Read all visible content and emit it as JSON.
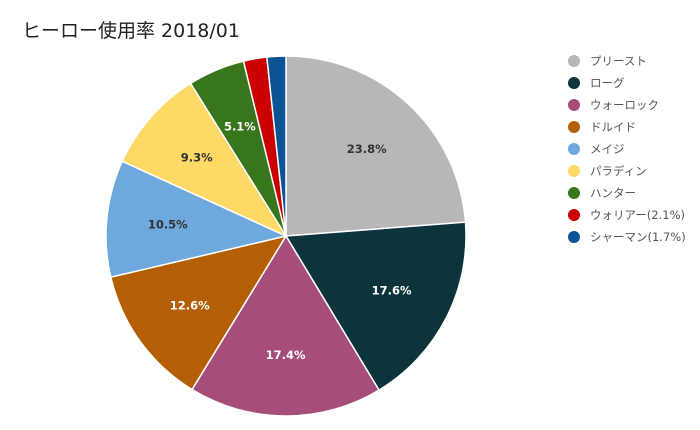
{
  "chart_data": {
    "type": "pie",
    "title": "ヒーロー使用率 2018/01",
    "legend_position": "right",
    "slices": [
      {
        "name": "プリースト",
        "value": 23.8,
        "label": "23.8%",
        "color": "#b7b7b7",
        "label_color": "#333333"
      },
      {
        "name": "ローグ",
        "value": 17.6,
        "label": "17.6%",
        "color": "#0c343d",
        "label_color": "#ffffff"
      },
      {
        "name": "ウォーロック",
        "value": 17.4,
        "label": "17.4%",
        "color": "#a64d79",
        "label_color": "#ffffff"
      },
      {
        "name": "ドルイド",
        "value": 12.6,
        "label": "12.6%",
        "color": "#b45f06",
        "label_color": "#ffffff"
      },
      {
        "name": "メイジ",
        "value": 10.5,
        "label": "10.5%",
        "color": "#6fa8dc",
        "label_color": "#333333"
      },
      {
        "name": "パラディン",
        "value": 9.3,
        "label": "9.3%",
        "color": "#ffd966",
        "label_color": "#333333"
      },
      {
        "name": "ハンター",
        "value": 5.1,
        "label": "5.1%",
        "color": "#38761d",
        "label_color": "#ffffff"
      },
      {
        "name": "ウォリアー(2.1%)",
        "value": 2.1,
        "label": "",
        "color": "#cc0000",
        "label_color": "#ffffff"
      },
      {
        "name": "シャーマン(1.7%)",
        "value": 1.7,
        "label": "",
        "color": "#0b5394",
        "label_color": "#ffffff"
      }
    ]
  }
}
